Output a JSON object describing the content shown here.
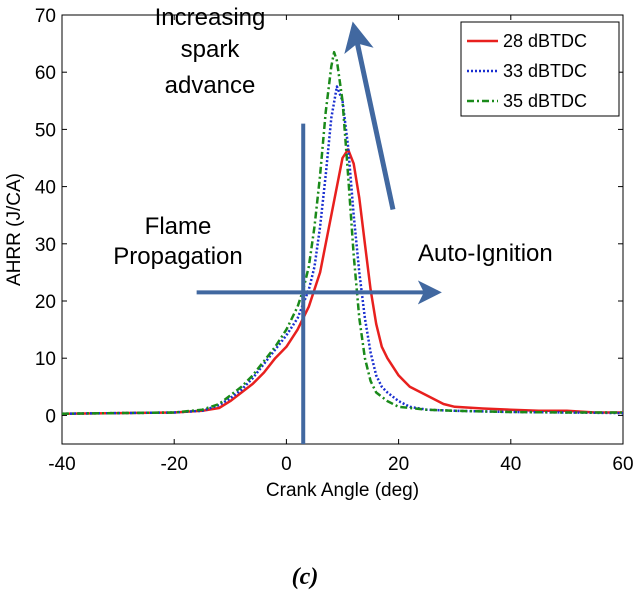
{
  "chart_data": {
    "type": "line",
    "title": "",
    "xlabel": "Crank Angle (deg)",
    "ylabel": "AHRR (J/CA)",
    "xlim": [
      -40,
      60
    ],
    "ylim": [
      -5,
      70
    ],
    "xticks": [
      -40,
      -20,
      0,
      20,
      40,
      60
    ],
    "yticks": [
      0,
      10,
      20,
      30,
      40,
      50,
      60,
      70
    ],
    "grid": false,
    "legend_position": "top-right",
    "series": [
      {
        "name": "28 dBTDC",
        "color": "#e8201e",
        "style": "solid",
        "points": [
          [
            -40,
            0.3
          ],
          [
            -30,
            0.4
          ],
          [
            -20,
            0.5
          ],
          [
            -15,
            0.8
          ],
          [
            -12,
            1.3
          ],
          [
            -10,
            2.5
          ],
          [
            -8,
            4
          ],
          [
            -6,
            5.5
          ],
          [
            -4,
            7.5
          ],
          [
            -2,
            10
          ],
          [
            0,
            12
          ],
          [
            2,
            15
          ],
          [
            4,
            19
          ],
          [
            6,
            25
          ],
          [
            8,
            35
          ],
          [
            9,
            40
          ],
          [
            10,
            45
          ],
          [
            11,
            46.5
          ],
          [
            12,
            44
          ],
          [
            13,
            38
          ],
          [
            14,
            30
          ],
          [
            15,
            22
          ],
          [
            16,
            16
          ],
          [
            17,
            12
          ],
          [
            18,
            10
          ],
          [
            20,
            7
          ],
          [
            22,
            5
          ],
          [
            25,
            3.5
          ],
          [
            28,
            2
          ],
          [
            30,
            1.5
          ],
          [
            35,
            1.2
          ],
          [
            40,
            1
          ],
          [
            45,
            0.8
          ],
          [
            50,
            0.8
          ],
          [
            55,
            0.5
          ],
          [
            60,
            0.5
          ]
        ]
      },
      {
        "name": "33 dBTDC",
        "color": "#1a2fd0",
        "style": "dotted",
        "points": [
          [
            -40,
            0.3
          ],
          [
            -30,
            0.4
          ],
          [
            -20,
            0.5
          ],
          [
            -15,
            0.8
          ],
          [
            -12,
            1.8
          ],
          [
            -10,
            3
          ],
          [
            -8,
            4.5
          ],
          [
            -6,
            6.5
          ],
          [
            -4,
            9
          ],
          [
            -2,
            11.5
          ],
          [
            0,
            14
          ],
          [
            2,
            17
          ],
          [
            4,
            22
          ],
          [
            5,
            26
          ],
          [
            6,
            33
          ],
          [
            7,
            42
          ],
          [
            8,
            52
          ],
          [
            9,
            57.5
          ],
          [
            10,
            55
          ],
          [
            11,
            47
          ],
          [
            12,
            35
          ],
          [
            13,
            25
          ],
          [
            14,
            17
          ],
          [
            15,
            11
          ],
          [
            16,
            7
          ],
          [
            17,
            5
          ],
          [
            18,
            4
          ],
          [
            20,
            2.5
          ],
          [
            22,
            1.5
          ],
          [
            25,
            1
          ],
          [
            30,
            0.8
          ],
          [
            40,
            0.6
          ],
          [
            50,
            0.5
          ],
          [
            60,
            0.4
          ]
        ]
      },
      {
        "name": "35 dBTDC",
        "color": "#1a8a1a",
        "style": "dash-dot",
        "points": [
          [
            -40,
            0.3
          ],
          [
            -30,
            0.4
          ],
          [
            -20,
            0.5
          ],
          [
            -15,
            1
          ],
          [
            -12,
            2
          ],
          [
            -10,
            3.5
          ],
          [
            -8,
            5
          ],
          [
            -6,
            7
          ],
          [
            -4,
            9.5
          ],
          [
            -2,
            12
          ],
          [
            0,
            15
          ],
          [
            2,
            19
          ],
          [
            3,
            22
          ],
          [
            4,
            26
          ],
          [
            5,
            33
          ],
          [
            6,
            42
          ],
          [
            7,
            53
          ],
          [
            8,
            61
          ],
          [
            8.5,
            63.5
          ],
          [
            9,
            62
          ],
          [
            10,
            55
          ],
          [
            11,
            42
          ],
          [
            12,
            28
          ],
          [
            13,
            17
          ],
          [
            14,
            10
          ],
          [
            15,
            6
          ],
          [
            16,
            4
          ],
          [
            18,
            2.5
          ],
          [
            20,
            1.5
          ],
          [
            25,
            1
          ],
          [
            30,
            0.8
          ],
          [
            40,
            0.6
          ],
          [
            50,
            0.5
          ],
          [
            60,
            0.5
          ]
        ]
      }
    ],
    "annotations": {
      "advance_lines": [
        "Increasing",
        "spark",
        "advance"
      ],
      "flame_lines": [
        "Flame",
        "Propagation"
      ],
      "auto_ignition": "Auto-Ignition",
      "vertical_marker_x": 3,
      "horizontal_arrow": {
        "x_from": -16,
        "x_to": 27,
        "y": 21.5
      },
      "spark_arrow": {
        "from": [
          19,
          36
        ],
        "to": [
          12,
          68
        ]
      },
      "arrow_color": "#4168a0"
    },
    "caption": "(c)"
  }
}
